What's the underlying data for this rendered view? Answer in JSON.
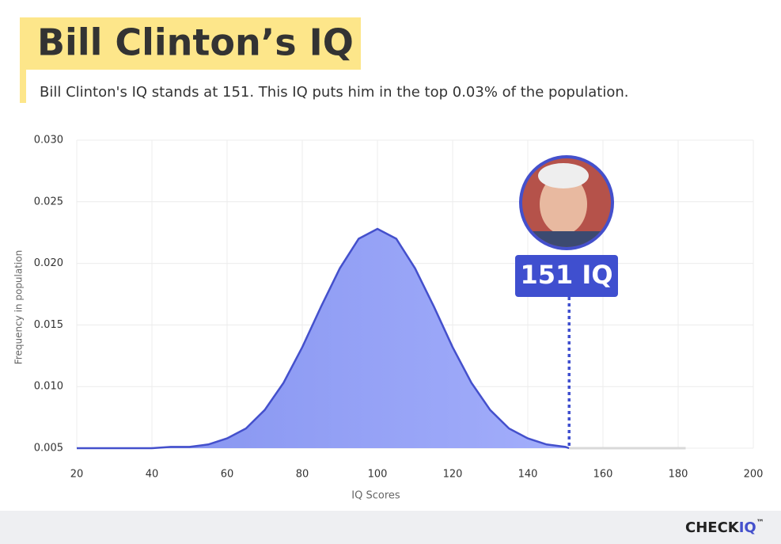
{
  "chart_data": {
    "type": "area",
    "title": "Bill Clinton’s IQ",
    "subtitle": "Bill Clinton's IQ stands at 151. This IQ puts him in the top 0.03% of the population.",
    "x_label": "IQ Scores",
    "y_label": "Frequency in population",
    "x": [
      20,
      30,
      40,
      45,
      50,
      55,
      60,
      65,
      70,
      75,
      80,
      85,
      90,
      95,
      100,
      105,
      110,
      115,
      120,
      125,
      130,
      135,
      140,
      145,
      150,
      151
    ],
    "values": [
      0.005,
      0.005,
      0.005,
      0.0051,
      0.0051,
      0.0053,
      0.0058,
      0.0066,
      0.0081,
      0.0103,
      0.0132,
      0.0165,
      0.0196,
      0.022,
      0.0228,
      0.022,
      0.0196,
      0.0165,
      0.0132,
      0.0103,
      0.0081,
      0.0066,
      0.0058,
      0.0053,
      0.0051,
      0.005
    ],
    "color": "#4450cc",
    "tail": {
      "x": [
        151,
        182
      ],
      "values": [
        0.005,
        0.005
      ],
      "color": "#d9d9d9"
    },
    "marker": {
      "x": 151,
      "label": "151 IQ"
    },
    "xlim": [
      20,
      200
    ],
    "xticks": [
      20,
      40,
      60,
      80,
      100,
      120,
      140,
      160,
      180,
      200
    ],
    "ylim": [
      0.005,
      0.03
    ],
    "yticks": [
      0.005,
      {
        "value": 0.01,
        "label": "0.010"
      },
      0.015,
      {
        "value": 0.02,
        "label": "0.020"
      },
      0.025,
      {
        "value": 0.03,
        "label": "0.030"
      }
    ],
    "grid": true
  },
  "footer": {
    "brand": "CHECK",
    "brand_accent": "IQ",
    "trademark": "™"
  }
}
